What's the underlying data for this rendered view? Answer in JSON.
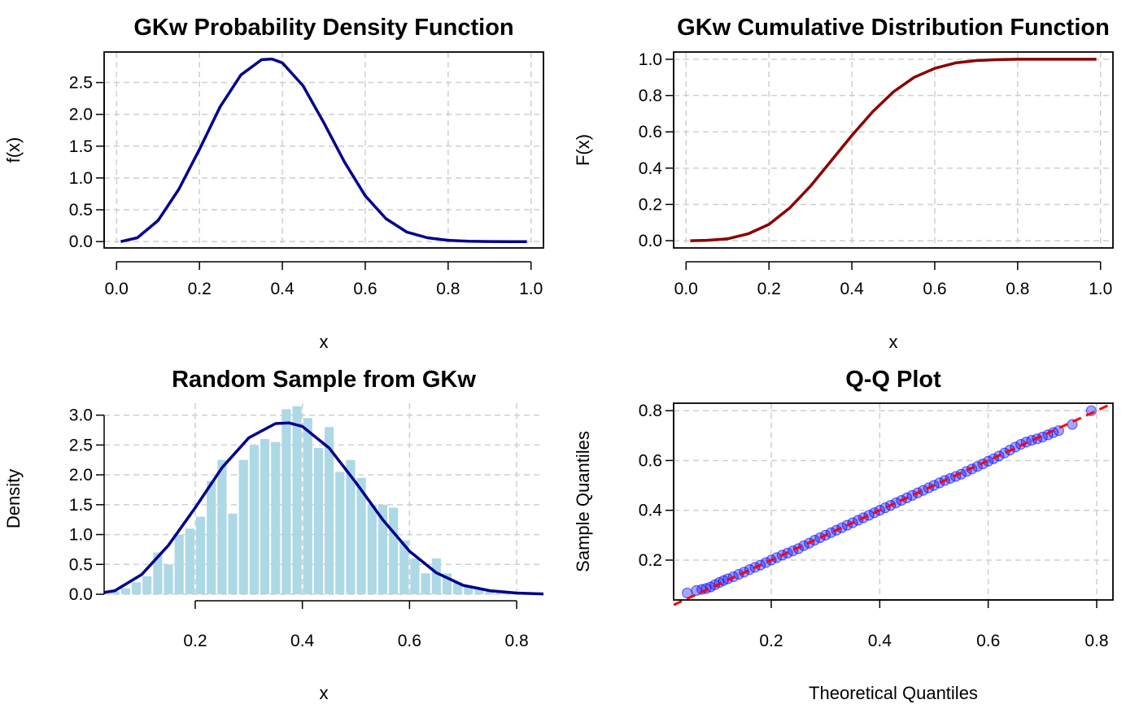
{
  "chart_data": [
    {
      "type": "line",
      "title": "GKw Probability Density Function",
      "xlabel": "x",
      "ylabel": "f(x)",
      "xlim": [
        -0.03,
        1.03
      ],
      "ylim": [
        -0.1,
        2.98
      ],
      "x_ticks": [
        "0.0",
        "0.2",
        "0.4",
        "0.6",
        "0.8",
        "1.0"
      ],
      "y_ticks": [
        "0.0",
        "0.5",
        "1.0",
        "1.5",
        "2.0",
        "2.5"
      ],
      "grid": true,
      "series": [
        {
          "color": "#00008B",
          "x": [
            0.01,
            0.05,
            0.1,
            0.15,
            0.2,
            0.25,
            0.3,
            0.35,
            0.375,
            0.4,
            0.45,
            0.5,
            0.55,
            0.6,
            0.65,
            0.7,
            0.75,
            0.8,
            0.85,
            0.9,
            0.95,
            0.99
          ],
          "y": [
            0.0,
            0.06,
            0.33,
            0.82,
            1.45,
            2.12,
            2.62,
            2.86,
            2.87,
            2.81,
            2.45,
            1.87,
            1.25,
            0.72,
            0.36,
            0.15,
            0.06,
            0.02,
            0.005,
            0.001,
            0.0,
            0.0
          ]
        }
      ]
    },
    {
      "type": "line",
      "title": "GKw Cumulative Distribution Function",
      "xlabel": "x",
      "ylabel": "F(x)",
      "xlim": [
        -0.03,
        1.03
      ],
      "ylim": [
        -0.04,
        1.04
      ],
      "x_ticks": [
        "0.0",
        "0.2",
        "0.4",
        "0.6",
        "0.8",
        "1.0"
      ],
      "y_ticks": [
        "0.0",
        "0.2",
        "0.4",
        "0.6",
        "0.8",
        "1.0"
      ],
      "grid": true,
      "series": [
        {
          "color": "#8B0000",
          "x": [
            0.01,
            0.05,
            0.1,
            0.15,
            0.2,
            0.25,
            0.3,
            0.35,
            0.4,
            0.45,
            0.5,
            0.55,
            0.6,
            0.65,
            0.7,
            0.75,
            0.8,
            0.9,
            0.99
          ],
          "y": [
            0.0,
            0.002,
            0.01,
            0.038,
            0.09,
            0.18,
            0.3,
            0.44,
            0.58,
            0.71,
            0.82,
            0.9,
            0.95,
            0.98,
            0.993,
            0.998,
            1.0,
            1.0,
            1.0
          ]
        }
      ]
    },
    {
      "type": "bar",
      "title": "Random Sample from GKw",
      "xlabel": "x",
      "ylabel": "Density",
      "xlim": [
        0.03,
        0.85
      ],
      "ylim": [
        0,
        3.2
      ],
      "x_ticks": [
        "0.2",
        "0.4",
        "0.6",
        "0.8"
      ],
      "y_ticks": [
        "0.0",
        "0.5",
        "1.0",
        "1.5",
        "2.0",
        "2.5",
        "3.0"
      ],
      "grid": true,
      "bar_color": "#ADD8E6",
      "bin_width": 0.02,
      "bin_starts": [
        0.04,
        0.06,
        0.08,
        0.1,
        0.12,
        0.14,
        0.16,
        0.18,
        0.2,
        0.22,
        0.24,
        0.26,
        0.28,
        0.3,
        0.32,
        0.34,
        0.36,
        0.38,
        0.4,
        0.42,
        0.44,
        0.46,
        0.48,
        0.5,
        0.52,
        0.54,
        0.56,
        0.58,
        0.6,
        0.62,
        0.64,
        0.66,
        0.68,
        0.7,
        0.72,
        0.74,
        0.76,
        0.78,
        0.8
      ],
      "densities": [
        0.05,
        0.1,
        0.2,
        0.3,
        0.7,
        0.5,
        1.0,
        1.1,
        1.3,
        1.9,
        2.25,
        1.35,
        2.25,
        2.5,
        2.6,
        2.55,
        3.1,
        3.15,
        2.95,
        2.45,
        2.8,
        2.05,
        2.25,
        1.95,
        1.5,
        1.5,
        1.45,
        0.9,
        0.6,
        0.35,
        0.6,
        0.35,
        0.2,
        0.12,
        0.08,
        0.05,
        0.03,
        0.02,
        0.01
      ],
      "density_curve": {
        "color": "#00008B",
        "x": [
          0.03,
          0.05,
          0.1,
          0.15,
          0.2,
          0.25,
          0.3,
          0.35,
          0.375,
          0.4,
          0.45,
          0.5,
          0.55,
          0.6,
          0.65,
          0.7,
          0.75,
          0.8,
          0.85
        ],
        "y": [
          0.03,
          0.06,
          0.33,
          0.82,
          1.45,
          2.12,
          2.62,
          2.86,
          2.87,
          2.81,
          2.45,
          1.87,
          1.25,
          0.72,
          0.36,
          0.15,
          0.06,
          0.02,
          0.005
        ]
      }
    },
    {
      "type": "scatter",
      "title": "Q-Q Plot",
      "xlabel": "Theoretical Quantiles",
      "ylabel": "Sample Quantiles",
      "xlim": [
        0.02,
        0.83
      ],
      "ylim": [
        0.04,
        0.83
      ],
      "x_ticks": [
        "0.2",
        "0.4",
        "0.6",
        "0.8"
      ],
      "y_ticks": [
        "0.2",
        "0.4",
        "0.6",
        "0.8"
      ],
      "grid": true,
      "point_color": "#0000FF",
      "reference_line": {
        "color": "#FF0000",
        "x": [
          0.02,
          0.83
        ],
        "y": [
          0.02,
          0.83
        ]
      },
      "points": [
        [
          0.045,
          0.068
        ],
        [
          0.062,
          0.078
        ],
        [
          0.072,
          0.082
        ],
        [
          0.08,
          0.086
        ],
        [
          0.088,
          0.092
        ],
        [
          0.096,
          0.101
        ],
        [
          0.104,
          0.11
        ],
        [
          0.112,
          0.118
        ],
        [
          0.12,
          0.125
        ],
        [
          0.13,
          0.133
        ],
        [
          0.14,
          0.143
        ],
        [
          0.15,
          0.152
        ],
        [
          0.16,
          0.162
        ],
        [
          0.17,
          0.171
        ],
        [
          0.18,
          0.18
        ],
        [
          0.19,
          0.19
        ],
        [
          0.2,
          0.2
        ],
        [
          0.21,
          0.21
        ],
        [
          0.22,
          0.22
        ],
        [
          0.23,
          0.228
        ],
        [
          0.24,
          0.237
        ],
        [
          0.25,
          0.246
        ],
        [
          0.26,
          0.258
        ],
        [
          0.27,
          0.268
        ],
        [
          0.28,
          0.28
        ],
        [
          0.29,
          0.29
        ],
        [
          0.3,
          0.3
        ],
        [
          0.31,
          0.31
        ],
        [
          0.32,
          0.32
        ],
        [
          0.33,
          0.33
        ],
        [
          0.34,
          0.34
        ],
        [
          0.35,
          0.35
        ],
        [
          0.36,
          0.36
        ],
        [
          0.37,
          0.37
        ],
        [
          0.38,
          0.38
        ],
        [
          0.39,
          0.39
        ],
        [
          0.4,
          0.4
        ],
        [
          0.41,
          0.41
        ],
        [
          0.42,
          0.42
        ],
        [
          0.43,
          0.43
        ],
        [
          0.44,
          0.44
        ],
        [
          0.45,
          0.45
        ],
        [
          0.46,
          0.46
        ],
        [
          0.47,
          0.47
        ],
        [
          0.48,
          0.48
        ],
        [
          0.49,
          0.49
        ],
        [
          0.5,
          0.5
        ],
        [
          0.51,
          0.51
        ],
        [
          0.52,
          0.52
        ],
        [
          0.53,
          0.528
        ],
        [
          0.54,
          0.536
        ],
        [
          0.55,
          0.545
        ],
        [
          0.56,
          0.556
        ],
        [
          0.57,
          0.566
        ],
        [
          0.58,
          0.576
        ],
        [
          0.59,
          0.586
        ],
        [
          0.6,
          0.597
        ],
        [
          0.61,
          0.607
        ],
        [
          0.62,
          0.618
        ],
        [
          0.63,
          0.63
        ],
        [
          0.64,
          0.642
        ],
        [
          0.65,
          0.654
        ],
        [
          0.66,
          0.665
        ],
        [
          0.67,
          0.674
        ],
        [
          0.68,
          0.681
        ],
        [
          0.69,
          0.687
        ],
        [
          0.7,
          0.694
        ],
        [
          0.71,
          0.703
        ],
        [
          0.72,
          0.712
        ],
        [
          0.73,
          0.72
        ],
        [
          0.755,
          0.745
        ],
        [
          0.79,
          0.8
        ]
      ]
    }
  ]
}
